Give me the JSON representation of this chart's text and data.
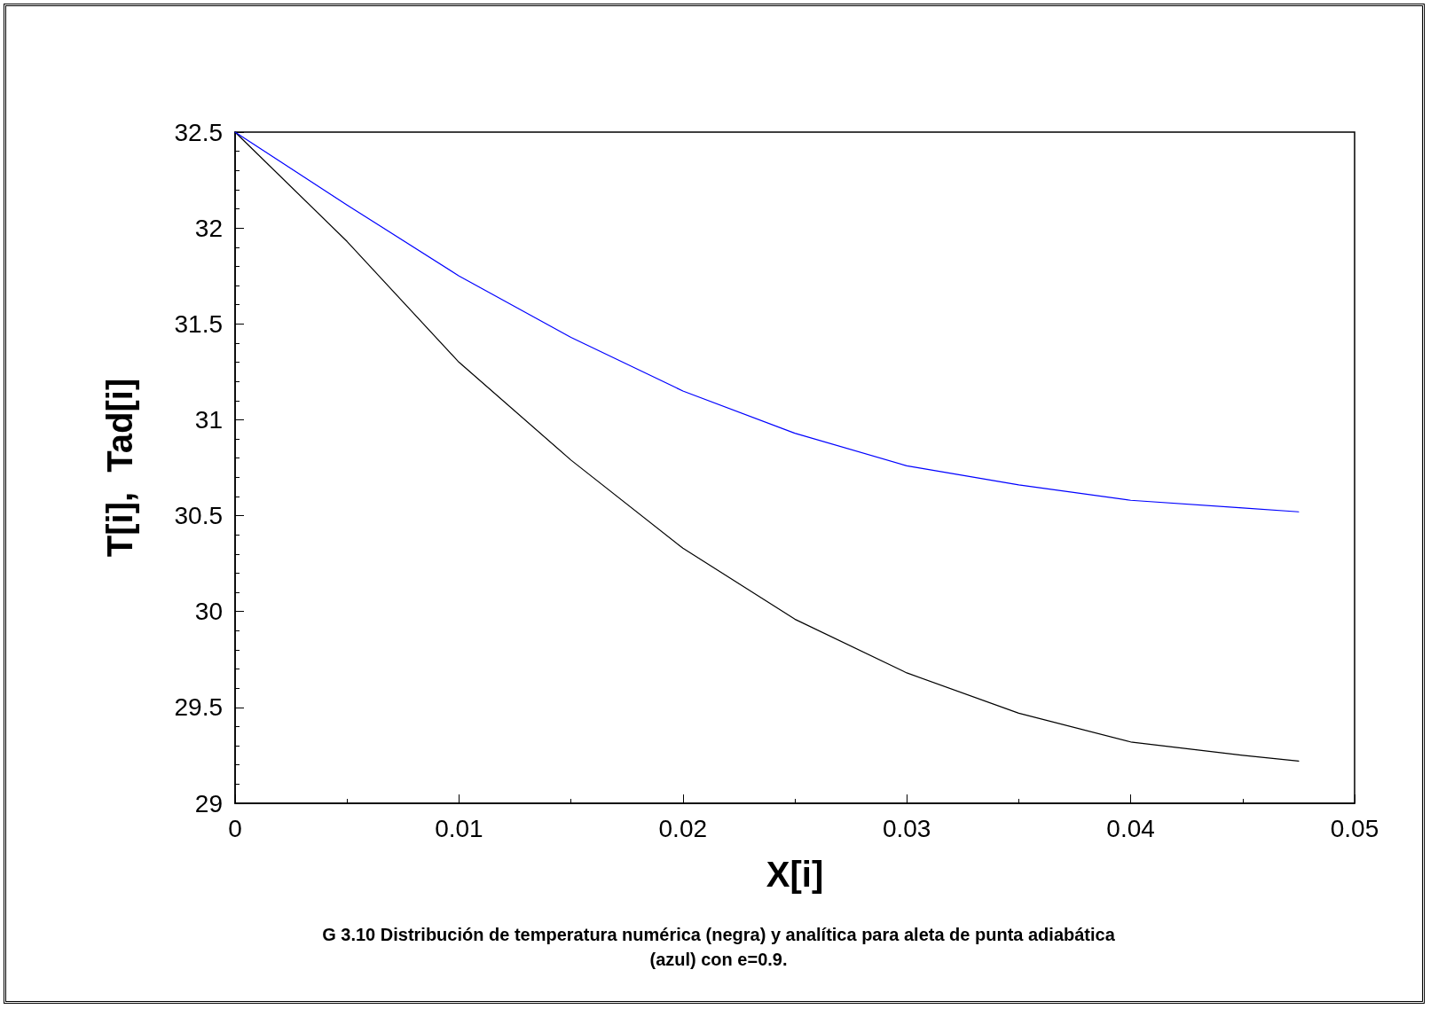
{
  "chart_data": {
    "type": "line",
    "xlabel": "X[i]",
    "ylabel": "T[i],  Tad[i]",
    "annotations": [
      "G 3.10 Distribución de temperatura numérica (negra) y analítica para aleta de punta adiabática (azul) con e=0.9."
    ],
    "x": [
      0,
      0.005,
      0.01,
      0.015,
      0.02,
      0.025,
      0.03,
      0.035,
      0.04,
      0.045,
      0.0475
    ],
    "series": [
      {
        "color": "#000000",
        "values": [
          32.5,
          31.93,
          31.3,
          30.79,
          30.33,
          29.96,
          29.68,
          29.47,
          29.32,
          29.25,
          29.22
        ]
      },
      {
        "color": "#0000ff",
        "values": [
          32.5,
          32.12,
          31.75,
          31.43,
          31.15,
          30.93,
          30.76,
          30.66,
          30.58,
          30.54,
          30.52
        ]
      }
    ],
    "xlim": [
      0,
      0.05
    ],
    "xticks": [
      0,
      0.01,
      0.02,
      0.03,
      0.04,
      0.05
    ],
    "ylim": [
      29,
      32.5
    ],
    "yticks": [
      29,
      29.5,
      30,
      30.5,
      31,
      31.5,
      32,
      32.5
    ],
    "grid": false,
    "marker": "none",
    "line_style": "solid"
  }
}
